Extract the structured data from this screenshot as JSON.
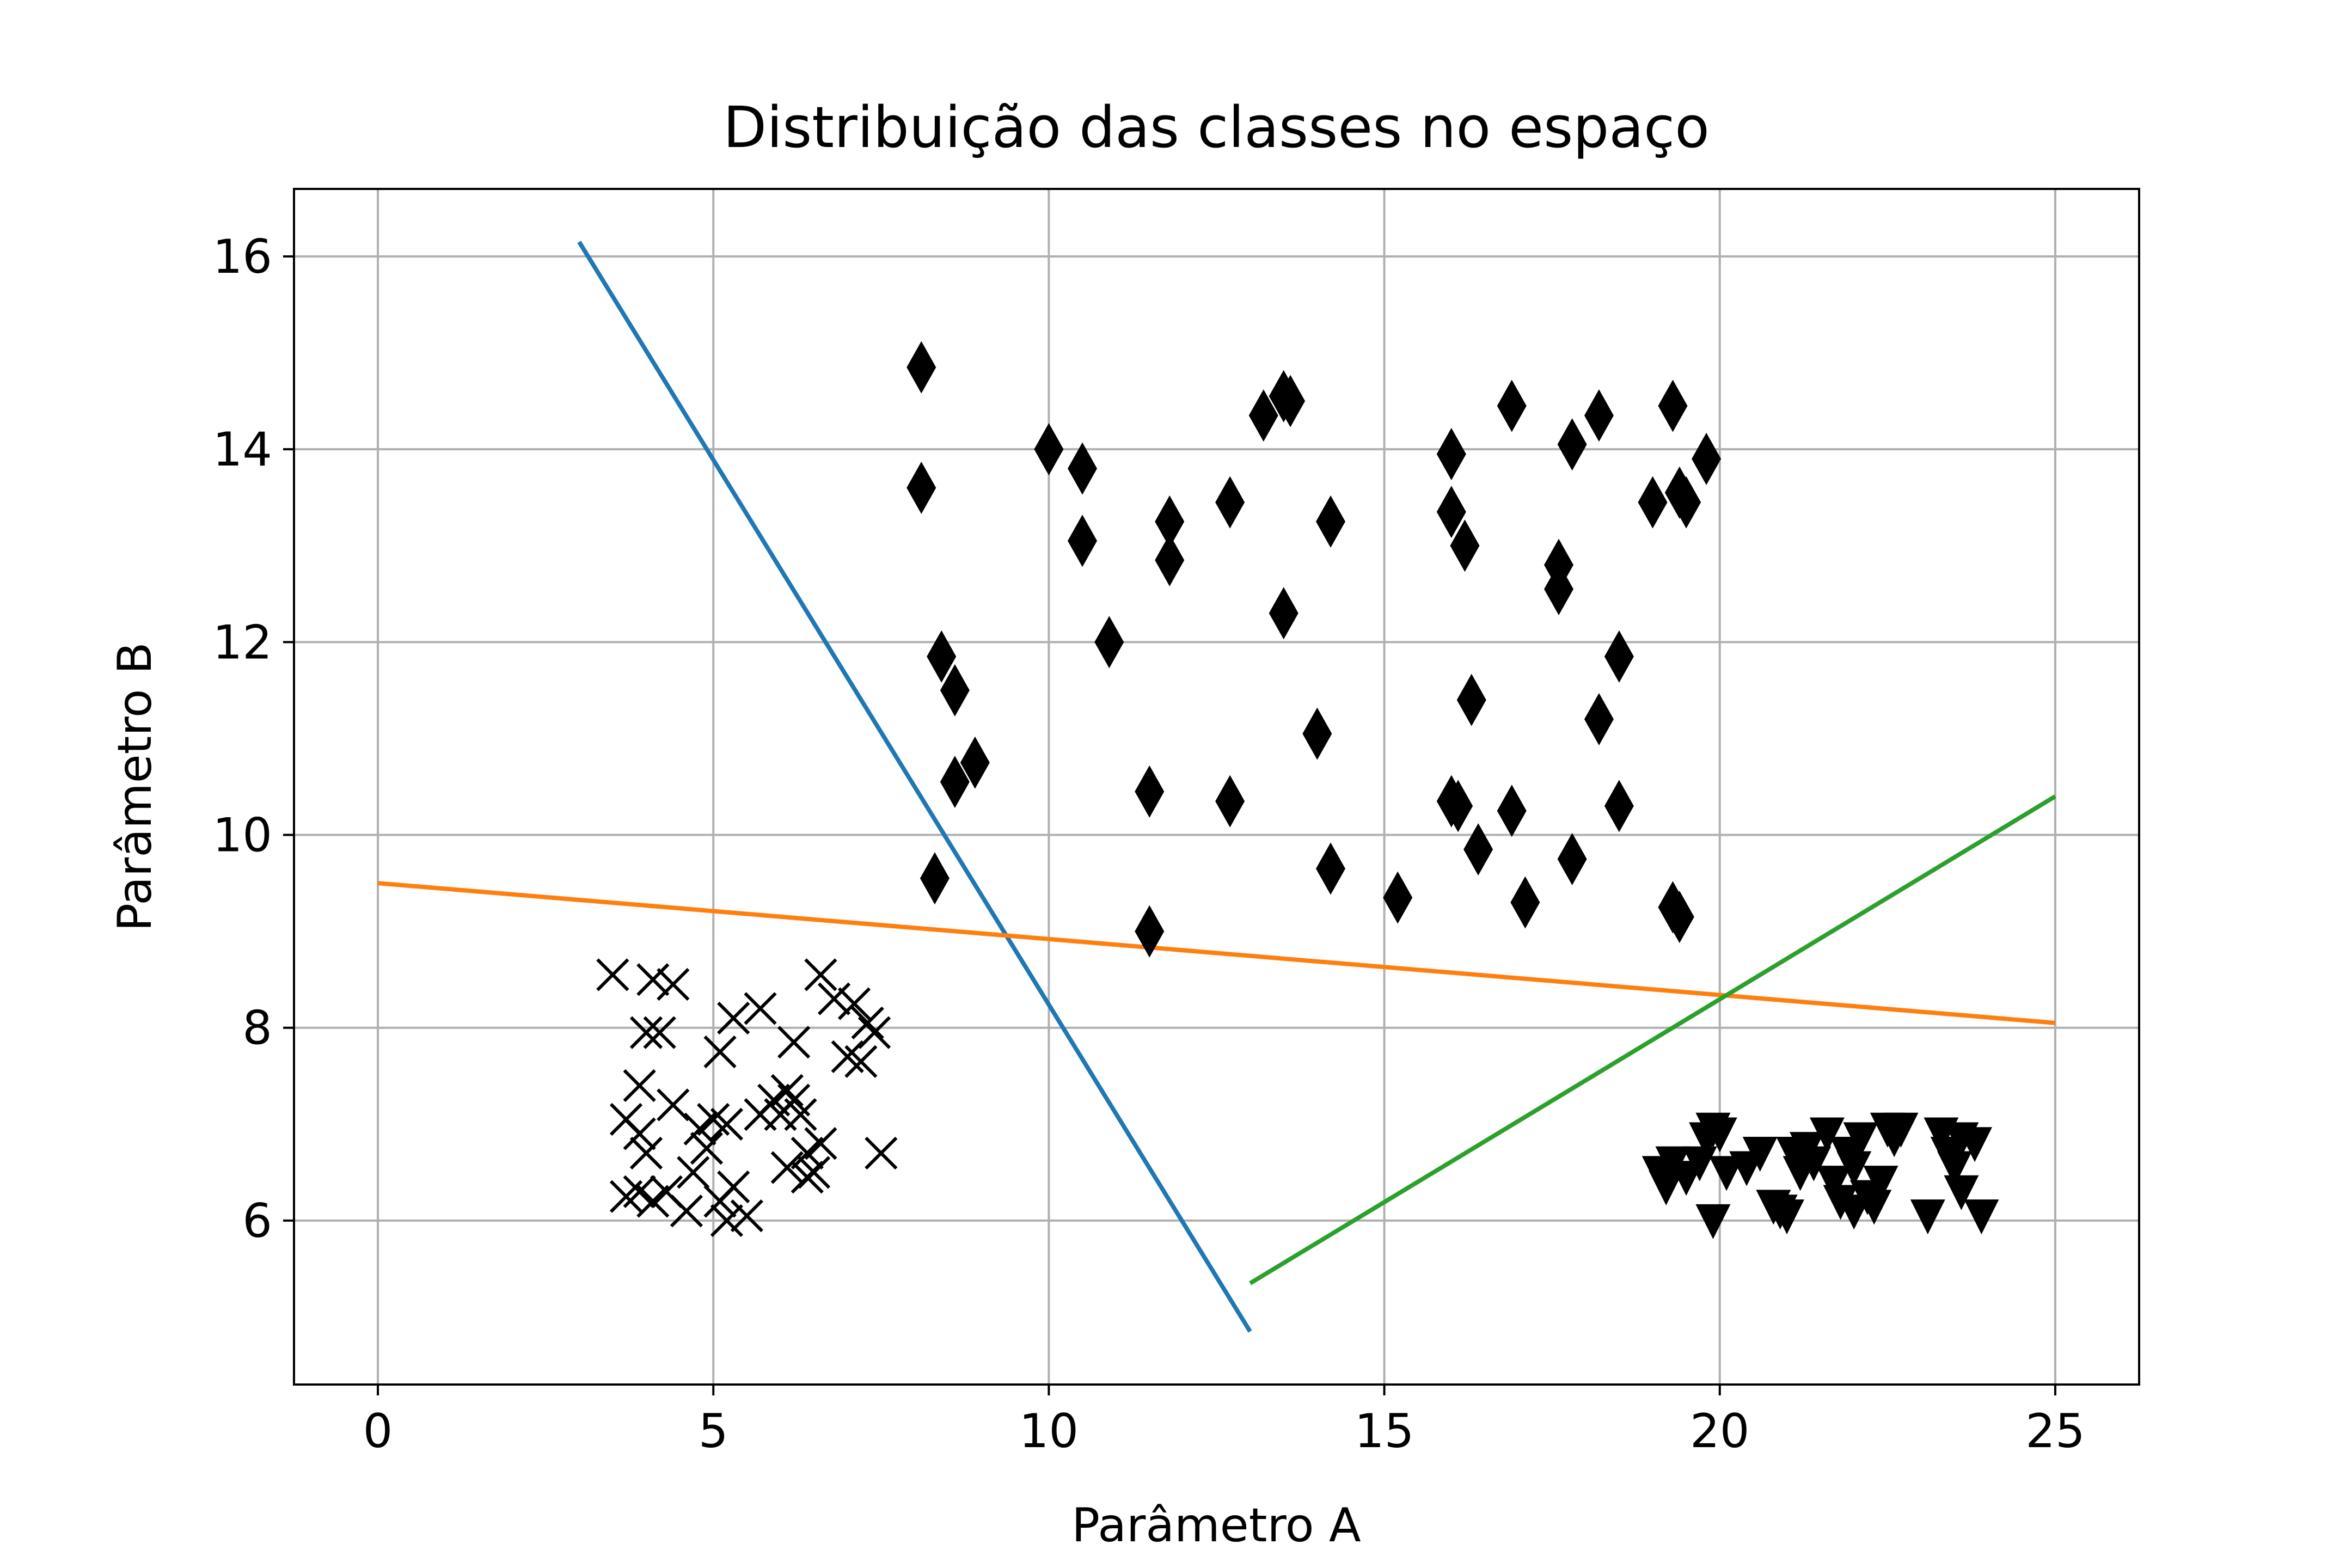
{
  "chart_data": {
    "type": "scatter",
    "title": "Distribuição das classes no espaço",
    "xlabel": "Parâmetro A",
    "ylabel": "Parâmetro B",
    "xlim": [
      -1.25,
      26.25
    ],
    "ylim": [
      4.3,
      16.7
    ],
    "xticks": [
      0,
      5,
      10,
      15,
      20,
      25
    ],
    "yticks": [
      6,
      8,
      10,
      12,
      14,
      16
    ],
    "grid": true,
    "series": [
      {
        "marker": "x",
        "color": "#000000",
        "points": [
          [
            3.5,
            8.55
          ],
          [
            4.1,
            8.5
          ],
          [
            4.4,
            8.45
          ],
          [
            4.0,
            7.95
          ],
          [
            4.2,
            7.95
          ],
          [
            3.9,
            7.4
          ],
          [
            3.7,
            7.05
          ],
          [
            3.9,
            6.9
          ],
          [
            4.4,
            7.2
          ],
          [
            4.0,
            6.7
          ],
          [
            3.7,
            6.25
          ],
          [
            3.9,
            6.3
          ],
          [
            4.1,
            6.2
          ],
          [
            4.3,
            6.3
          ],
          [
            4.6,
            6.1
          ],
          [
            4.7,
            6.5
          ],
          [
            4.9,
            6.75
          ],
          [
            4.8,
            6.95
          ],
          [
            5.0,
            7.05
          ],
          [
            5.2,
            7.0
          ],
          [
            5.1,
            6.2
          ],
          [
            5.3,
            6.35
          ],
          [
            5.2,
            6.0
          ],
          [
            5.5,
            6.05
          ],
          [
            5.3,
            8.1
          ],
          [
            5.1,
            7.75
          ],
          [
            5.7,
            8.2
          ],
          [
            5.7,
            7.1
          ],
          [
            5.9,
            7.25
          ],
          [
            6.0,
            7.1
          ],
          [
            6.2,
            7.25
          ],
          [
            6.1,
            7.35
          ],
          [
            6.3,
            7.1
          ],
          [
            6.1,
            6.55
          ],
          [
            6.4,
            6.7
          ],
          [
            6.5,
            6.5
          ],
          [
            6.6,
            6.8
          ],
          [
            6.4,
            6.45
          ],
          [
            6.2,
            7.85
          ],
          [
            6.6,
            8.55
          ],
          [
            6.8,
            8.3
          ],
          [
            7.0,
            7.7
          ],
          [
            7.2,
            7.65
          ],
          [
            7.1,
            8.25
          ],
          [
            7.4,
            7.95
          ],
          [
            7.3,
            8.05
          ],
          [
            7.5,
            6.7
          ]
        ]
      },
      {
        "marker": "thin_diamond",
        "color": "#000000",
        "points": [
          [
            8.1,
            14.85
          ],
          [
            8.1,
            13.6
          ],
          [
            8.4,
            11.85
          ],
          [
            8.6,
            11.5
          ],
          [
            8.6,
            10.55
          ],
          [
            8.9,
            10.75
          ],
          [
            8.3,
            9.55
          ],
          [
            10.0,
            14.0
          ],
          [
            10.5,
            13.8
          ],
          [
            10.5,
            13.05
          ],
          [
            10.9,
            12.0
          ],
          [
            11.5,
            10.45
          ],
          [
            11.5,
            9.0
          ],
          [
            11.8,
            13.25
          ],
          [
            11.8,
            12.85
          ],
          [
            12.7,
            13.45
          ],
          [
            12.7,
            10.35
          ],
          [
            13.2,
            14.35
          ],
          [
            13.5,
            14.55
          ],
          [
            13.6,
            14.5
          ],
          [
            13.5,
            12.3
          ],
          [
            14.0,
            11.05
          ],
          [
            14.2,
            13.25
          ],
          [
            14.2,
            9.65
          ],
          [
            15.2,
            9.35
          ],
          [
            16.0,
            13.95
          ],
          [
            16.0,
            13.35
          ],
          [
            16.2,
            13.0
          ],
          [
            16.3,
            11.4
          ],
          [
            16.0,
            10.35
          ],
          [
            16.1,
            10.3
          ],
          [
            16.4,
            9.85
          ],
          [
            16.9,
            14.45
          ],
          [
            16.9,
            10.25
          ],
          [
            17.1,
            9.3
          ],
          [
            17.6,
            12.8
          ],
          [
            17.6,
            12.55
          ],
          [
            17.8,
            14.05
          ],
          [
            17.8,
            9.75
          ],
          [
            18.2,
            14.35
          ],
          [
            18.2,
            11.2
          ],
          [
            18.5,
            11.85
          ],
          [
            18.5,
            10.3
          ],
          [
            19.0,
            13.45
          ],
          [
            19.3,
            14.45
          ],
          [
            19.4,
            13.55
          ],
          [
            19.5,
            13.45
          ],
          [
            19.8,
            13.9
          ],
          [
            19.3,
            9.25
          ],
          [
            19.4,
            9.15
          ]
        ]
      },
      {
        "marker": "triangle_down",
        "color": "#000000",
        "points": [
          [
            19.1,
            6.5
          ],
          [
            19.2,
            6.35
          ],
          [
            19.3,
            6.6
          ],
          [
            19.5,
            6.45
          ],
          [
            19.7,
            6.6
          ],
          [
            19.8,
            6.85
          ],
          [
            19.9,
            6.95
          ],
          [
            19.9,
            6.0
          ],
          [
            20.1,
            6.5
          ],
          [
            20.0,
            6.9
          ],
          [
            20.4,
            6.55
          ],
          [
            20.6,
            6.7
          ],
          [
            20.8,
            6.15
          ],
          [
            20.9,
            6.1
          ],
          [
            21.0,
            6.05
          ],
          [
            21.1,
            6.7
          ],
          [
            21.3,
            6.75
          ],
          [
            21.4,
            6.6
          ],
          [
            21.6,
            6.9
          ],
          [
            21.7,
            6.4
          ],
          [
            21.8,
            6.2
          ],
          [
            21.9,
            6.7
          ],
          [
            22.0,
            6.55
          ],
          [
            22.1,
            6.85
          ],
          [
            22.2,
            6.25
          ],
          [
            22.3,
            6.15
          ],
          [
            22.4,
            6.4
          ],
          [
            22.5,
            6.95
          ],
          [
            22.6,
            6.85
          ],
          [
            22.7,
            6.95
          ],
          [
            23.1,
            6.05
          ],
          [
            23.3,
            6.9
          ],
          [
            23.4,
            6.7
          ],
          [
            23.5,
            6.55
          ],
          [
            23.6,
            6.3
          ],
          [
            23.6,
            6.85
          ],
          [
            23.8,
            6.8
          ],
          [
            23.9,
            6.05
          ],
          [
            21.2,
            6.5
          ],
          [
            22.0,
            6.1
          ]
        ]
      }
    ],
    "lines": [
      {
        "color": "#1f77b4",
        "points": [
          [
            3,
            16.15
          ],
          [
            13,
            4.85
          ]
        ]
      },
      {
        "color": "#ff7f0e",
        "points": [
          [
            0,
            9.5
          ],
          [
            25,
            8.05
          ]
        ]
      },
      {
        "color": "#2ca02c",
        "points": [
          [
            13,
            5.35
          ],
          [
            25,
            10.4
          ]
        ]
      }
    ],
    "colors": {
      "grid": "#b0b0b0",
      "axes": "#000000"
    }
  }
}
